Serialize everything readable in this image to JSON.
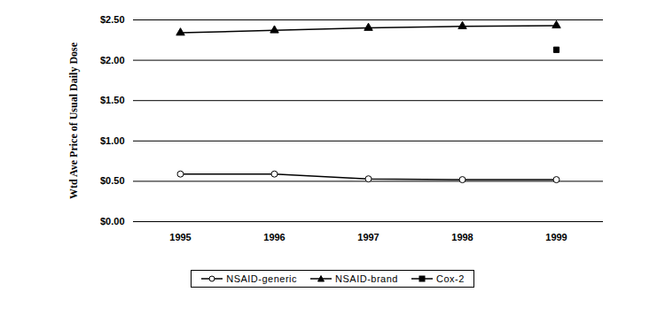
{
  "chart_data": {
    "type": "line",
    "y_label": "Wtd Ave Price of Usual Daily Dose",
    "categories": [
      "1995",
      "1996",
      "1997",
      "1998",
      "1999"
    ],
    "series": [
      {
        "name": "NSAID-generic",
        "color": "#000000",
        "marker": "circle-open",
        "values": [
          0.59,
          0.59,
          0.53,
          0.52,
          0.52
        ]
      },
      {
        "name": "NSAID-brand",
        "color": "#000000",
        "marker": "triangle",
        "values": [
          2.34,
          2.37,
          2.4,
          2.42,
          2.43
        ]
      },
      {
        "name": "Cox-2",
        "color": "#000000",
        "marker": "square",
        "values": [
          null,
          null,
          null,
          null,
          2.13
        ]
      }
    ],
    "ylim": [
      0,
      2.5
    ],
    "yticks": [
      {
        "value": 0,
        "label": "$0.00"
      },
      {
        "value": 0.5,
        "label": "$0.50"
      },
      {
        "value": 1,
        "label": "$1.00"
      },
      {
        "value": 1.5,
        "label": "$1.50"
      },
      {
        "value": 2,
        "label": "$2.00"
      },
      {
        "value": 2.5,
        "label": "$2.50"
      }
    ],
    "grid": true,
    "legend": "bottom"
  }
}
